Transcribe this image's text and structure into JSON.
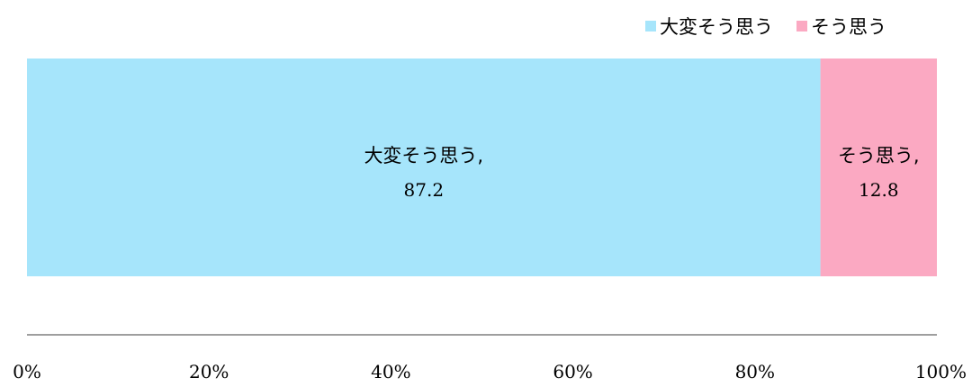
{
  "chart_data": {
    "type": "bar",
    "orientation": "horizontal",
    "stacked": true,
    "categories": [
      ""
    ],
    "series": [
      {
        "name": "大変そう思う",
        "values": [
          87.2
        ],
        "color": "#A6E5FB",
        "label": "大変そう思う,",
        "value_label": "87.2"
      },
      {
        "name": "そう思う",
        "values": [
          12.8
        ],
        "color": "#FBA9C2",
        "label": "そう思う,",
        "value_label": "12.8"
      }
    ],
    "xlim": [
      0,
      100
    ],
    "xticks": [
      "0%",
      "20%",
      "40%",
      "60%",
      "80%",
      "100%"
    ],
    "grid": false,
    "legend_position": "top-right"
  }
}
